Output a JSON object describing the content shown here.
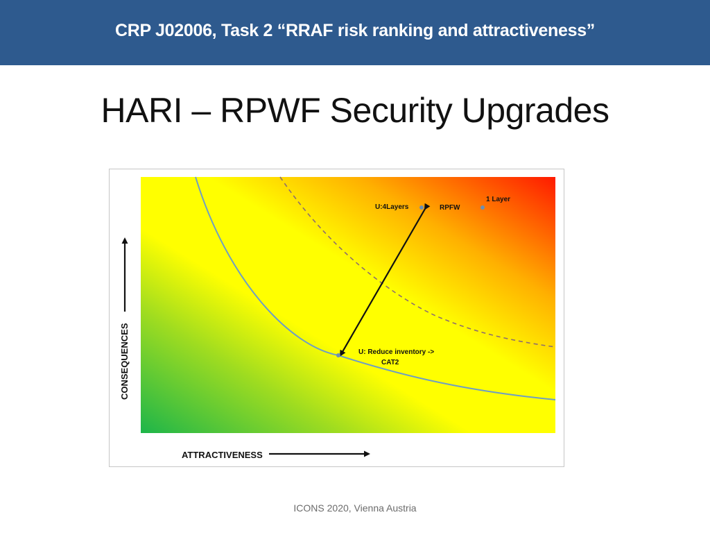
{
  "header": {
    "title": "CRP J02006, Task 2 “RRAF risk ranking and attractiveness”"
  },
  "slide": {
    "title": "HARI – RPWF Security Upgrades"
  },
  "figure": {
    "x_axis_label": "ATTRACTIVENESS",
    "y_axis_label": "CONSEQUENCES",
    "points": {
      "u4layers": "U:4Layers",
      "rpfw": "RPFW",
      "one_layer": "1 Layer",
      "reduce_line1": "U: Reduce inventory ->",
      "reduce_line2": "CAT2"
    },
    "colors": {
      "low_risk": "#1db54a",
      "mid_risk": "#ffff00",
      "high_risk": "#ff1a00",
      "threshold_curve": "#6e9ec4",
      "dashed_curve": "#8e6e6e"
    }
  },
  "footer": {
    "text": "ICONS 2020, Vienna Austria"
  }
}
